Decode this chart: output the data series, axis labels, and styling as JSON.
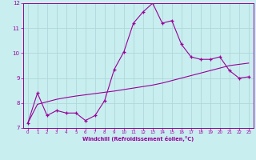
{
  "xlabel": "Windchill (Refroidissement éolien,°C)",
  "xlim": [
    -0.5,
    23.5
  ],
  "ylim": [
    7,
    12
  ],
  "xticks": [
    0,
    1,
    2,
    3,
    4,
    5,
    6,
    7,
    8,
    9,
    10,
    11,
    12,
    13,
    14,
    15,
    16,
    17,
    18,
    19,
    20,
    21,
    22,
    23
  ],
  "yticks": [
    7,
    8,
    9,
    10,
    11,
    12
  ],
  "background_color": "#c8eef0",
  "line_color": "#990099",
  "curve1_x": [
    0,
    1,
    2,
    3,
    4,
    5,
    6,
    7,
    8,
    9,
    10,
    11,
    12,
    13,
    14,
    15,
    16,
    17,
    18,
    19,
    20,
    21,
    22,
    23
  ],
  "curve1_y": [
    7.2,
    8.4,
    7.5,
    7.7,
    7.6,
    7.6,
    7.3,
    7.5,
    8.1,
    9.35,
    10.05,
    11.2,
    11.65,
    12.0,
    11.2,
    11.3,
    10.35,
    9.85,
    9.75,
    9.75,
    9.85,
    9.3,
    9.0,
    9.05
  ],
  "curve2_x": [
    0,
    1,
    2,
    3,
    4,
    5,
    6,
    7,
    8,
    9,
    10,
    11,
    12,
    13,
    14,
    15,
    16,
    17,
    18,
    19,
    20,
    21,
    22,
    23
  ],
  "curve2_y": [
    7.2,
    7.95,
    8.05,
    8.15,
    8.22,
    8.28,
    8.33,
    8.38,
    8.43,
    8.48,
    8.54,
    8.6,
    8.66,
    8.72,
    8.8,
    8.9,
    9.0,
    9.1,
    9.2,
    9.3,
    9.4,
    9.5,
    9.55,
    9.6
  ],
  "grid_color": "#b0d8d8",
  "marker": "+"
}
